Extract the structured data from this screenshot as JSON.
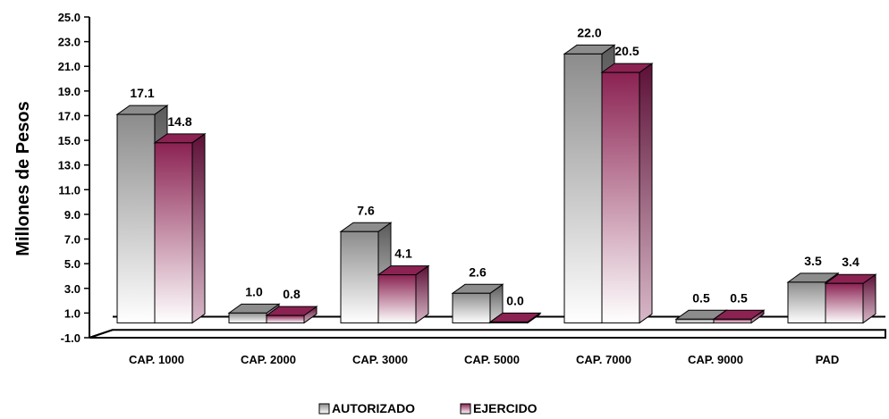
{
  "chart_data": {
    "type": "bar",
    "categories": [
      "CAP. 1000",
      "CAP. 2000",
      "CAP. 3000",
      "CAP. 5000",
      "CAP. 7000",
      "CAP. 9000",
      "PAD"
    ],
    "series": [
      {
        "name": "AUTORIZADO",
        "values": [
          17.1,
          1.0,
          7.6,
          2.6,
          22.0,
          0.5,
          3.5
        ],
        "labels": [
          "17.1",
          "1.0",
          "7.6",
          "2.6",
          "22.0",
          "0.5",
          "3.5"
        ],
        "color": "#8c8c8c"
      },
      {
        "name": "EJERCIDO",
        "values": [
          14.8,
          0.8,
          4.1,
          0.0,
          20.5,
          0.5,
          3.4
        ],
        "labels": [
          "14.8",
          "0.8",
          "4.1",
          "0.0",
          "20.5",
          "0.5",
          "3.4"
        ],
        "color": "#8b2252"
      }
    ],
    "ylabel": "Millones de Pesos",
    "xlabel": "",
    "ylim": [
      -1.0,
      25.0
    ],
    "yticks": [
      "25.0",
      "23.0",
      "21.0",
      "19.0",
      "17.0",
      "15.0",
      "13.0",
      "11.0",
      "9.0",
      "7.0",
      "5.0",
      "3.0",
      "1.0",
      "-1.0"
    ],
    "legend_position": "bottom-center",
    "grid": false,
    "style": "3d-column"
  }
}
